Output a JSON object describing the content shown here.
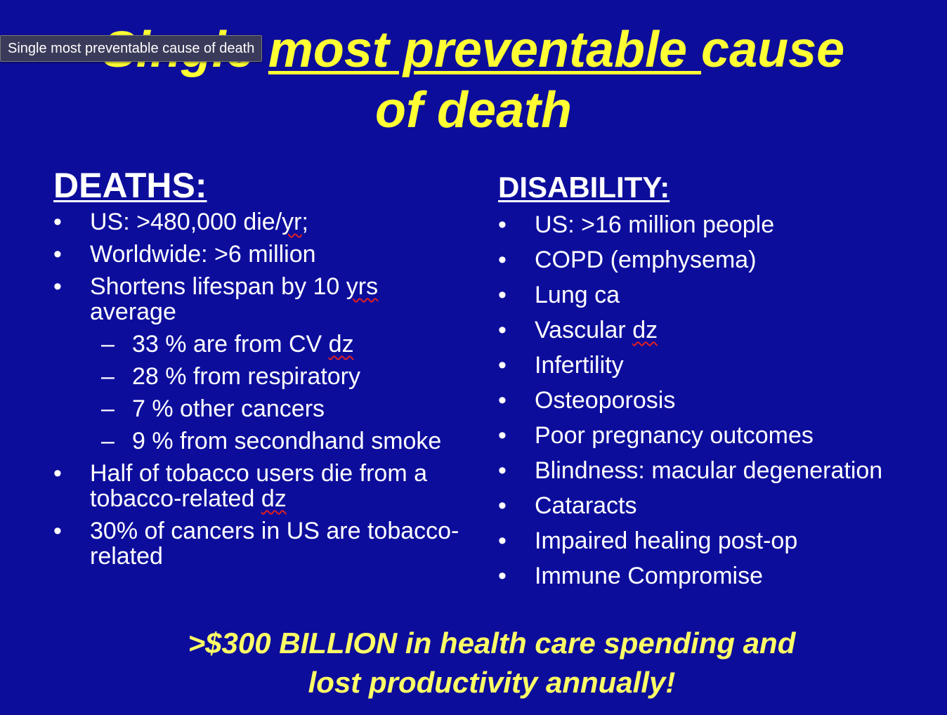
{
  "tooltip": "Single most preventable cause of death",
  "title": {
    "part1": "Single ",
    "part2_underlined": "most preventable ",
    "part3": "cause",
    "line2": "of death"
  },
  "deaths": {
    "heading": "DEATHS:",
    "bullet": "•",
    "dash": "–",
    "items": [
      {
        "pre": "US: >480,000 die/",
        "squig": "yr",
        "post": ";"
      },
      {
        "pre": "Worldwide: >6 million",
        "squig": "",
        "post": ""
      },
      {
        "pre": "Shortens lifespan by 10 ",
        "squig": "yrs",
        "post": " average"
      }
    ],
    "subitems": [
      {
        "pre": "33 % are from CV ",
        "squig": "dz",
        "post": ""
      },
      {
        "pre": "28 % from respiratory",
        "squig": "",
        "post": ""
      },
      {
        "pre": "7 % other cancers",
        "squig": "",
        "post": ""
      },
      {
        "pre": "9 % from secondhand smoke",
        "squig": "",
        "post": ""
      }
    ],
    "items2": [
      {
        "pre": "Half of tobacco users die from a tobacco-related ",
        "squig": "dz",
        "post": ""
      },
      {
        "pre": "30% of cancers in US are tobacco-related",
        "squig": "",
        "post": ""
      }
    ]
  },
  "disability": {
    "heading": "DISABILITY:",
    "bullet": "•",
    "items": [
      {
        "pre": "US: >16 million people",
        "squig": "",
        "post": ""
      },
      {
        "pre": "COPD (emphysema)",
        "squig": "",
        "post": ""
      },
      {
        "pre": "Lung ca",
        "squig": "",
        "post": ""
      },
      {
        "pre": "Vascular ",
        "squig": "dz",
        "post": ""
      },
      {
        "pre": "Infertility",
        "squig": "",
        "post": ""
      },
      {
        "pre": "Osteoporosis",
        "squig": "",
        "post": ""
      },
      {
        "pre": "Poor pregnancy outcomes",
        "squig": "",
        "post": ""
      },
      {
        "pre": "Blindness: macular degeneration",
        "squig": "",
        "post": ""
      },
      {
        "pre": "Cataracts",
        "squig": "",
        "post": ""
      },
      {
        "pre": "Impaired healing post-op",
        "squig": "",
        "post": ""
      },
      {
        "pre": "Immune Compromise",
        "squig": "",
        "post": ""
      }
    ]
  },
  "footer": {
    "line1": ">$300 BILLION in health care spending and",
    "line2": "lost productivity annually!"
  },
  "colors": {
    "background": "#0d0d9c",
    "title": "#ffff33",
    "footer": "#ffff66",
    "spellcheck": "#e02020"
  }
}
